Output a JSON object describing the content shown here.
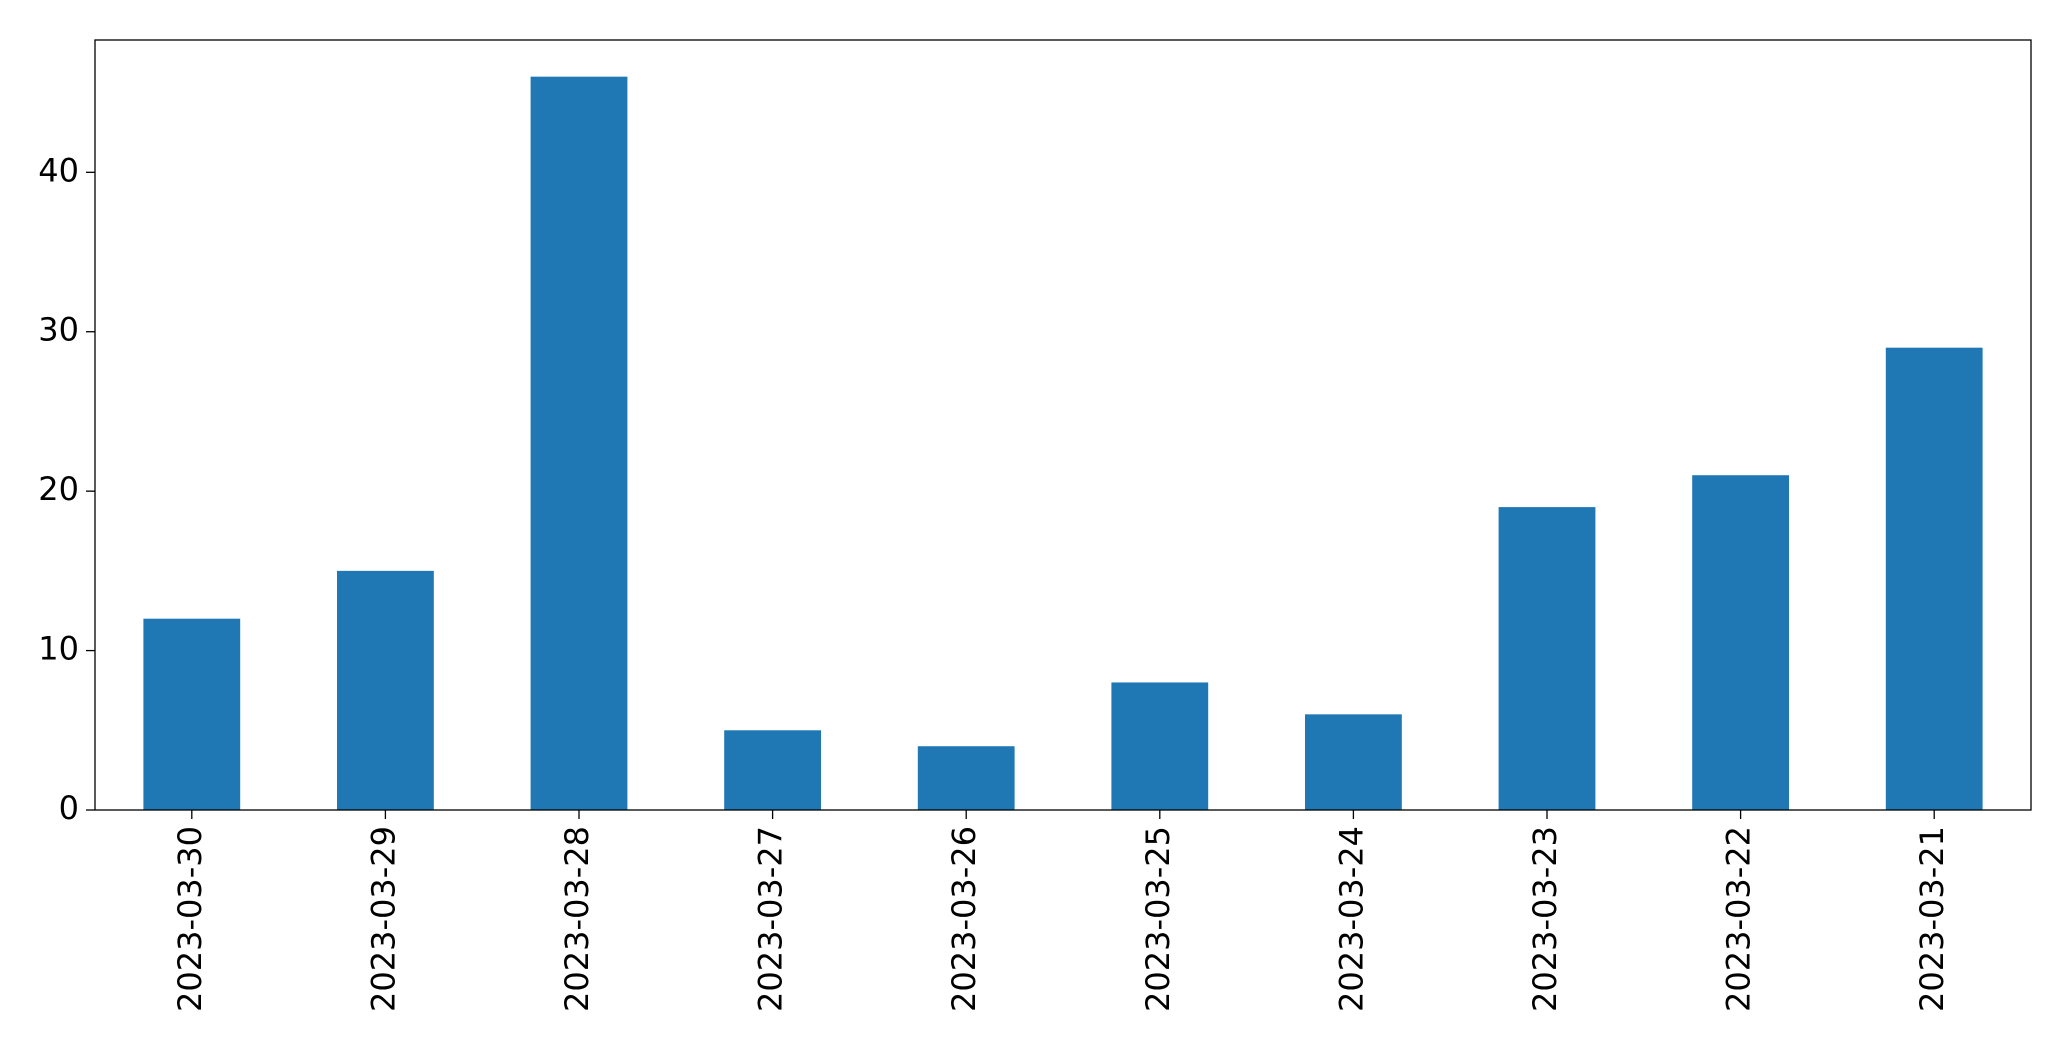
{
  "chart_data": {
    "type": "bar",
    "categories": [
      "2023-03-30",
      "2023-03-29",
      "2023-03-28",
      "2023-03-27",
      "2023-03-26",
      "2023-03-25",
      "2023-03-24",
      "2023-03-23",
      "2023-03-22",
      "2023-03-21"
    ],
    "values": [
      12,
      15,
      46,
      5,
      4,
      8,
      6,
      19,
      21,
      29
    ],
    "color": "#1f77b4",
    "ylim": [
      0,
      48.3
    ],
    "yticks": [
      0,
      10,
      20,
      30,
      40
    ],
    "grid": false
  }
}
